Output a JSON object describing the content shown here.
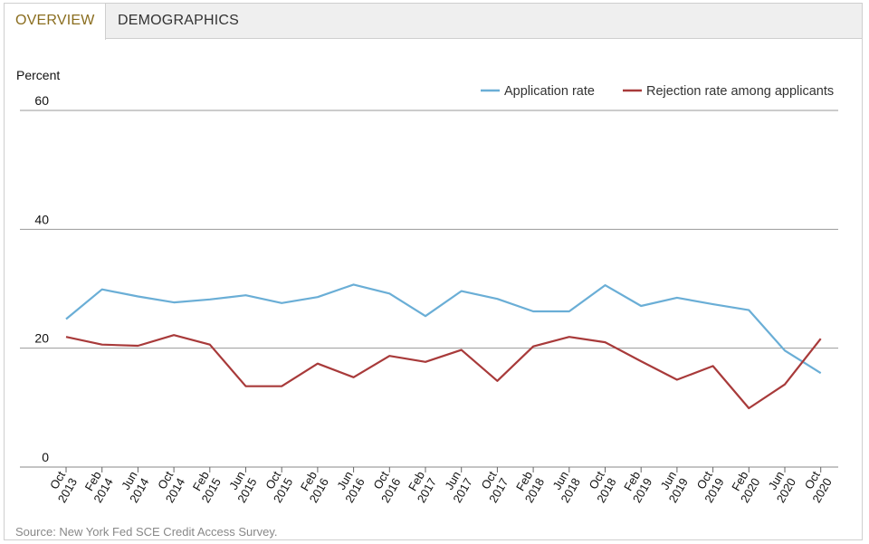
{
  "tabs": [
    {
      "label": "OVERVIEW",
      "active": true
    },
    {
      "label": "DEMOGRAPHICS",
      "active": false
    }
  ],
  "source": "Source: New York Fed SCE Credit Access Survey.",
  "colors": {
    "application": "#6aaed6",
    "rejection": "#a83a3a",
    "active_tab": "#8a6d1e",
    "grid": "#999999"
  },
  "chart_data": {
    "type": "line",
    "ylabel": "Percent",
    "ylim": [
      0,
      60
    ],
    "yticks": [
      0,
      20,
      40,
      60
    ],
    "legend_position": "top-right",
    "categories": [
      [
        "Oct",
        "2013"
      ],
      [
        "Feb",
        "2014"
      ],
      [
        "Jun",
        "2014"
      ],
      [
        "Oct",
        "2014"
      ],
      [
        "Feb",
        "2015"
      ],
      [
        "Jun",
        "2015"
      ],
      [
        "Oct",
        "2015"
      ],
      [
        "Feb",
        "2016"
      ],
      [
        "Jun",
        "2016"
      ],
      [
        "Oct",
        "2016"
      ],
      [
        "Feb",
        "2017"
      ],
      [
        "Jun",
        "2017"
      ],
      [
        "Oct",
        "2017"
      ],
      [
        "Feb",
        "2018"
      ],
      [
        "Jun",
        "2018"
      ],
      [
        "Oct",
        "2018"
      ],
      [
        "Feb",
        "2019"
      ],
      [
        "Jun",
        "2019"
      ],
      [
        "Oct",
        "2019"
      ],
      [
        "Feb",
        "2020"
      ],
      [
        "Jun",
        "2020"
      ],
      [
        "Oct",
        "2020"
      ]
    ],
    "series": [
      {
        "name": "Application rate",
        "color": "#6aaed6",
        "values": [
          24.9,
          29.9,
          28.7,
          27.7,
          28.2,
          28.9,
          27.6,
          28.6,
          30.7,
          29.2,
          25.4,
          29.6,
          28.3,
          26.2,
          26.2,
          30.6,
          27.1,
          28.5,
          27.4,
          26.4,
          19.6,
          15.8
        ]
      },
      {
        "name": "Rejection rate among applicants",
        "color": "#a83a3a",
        "values": [
          21.9,
          20.6,
          20.4,
          22.2,
          20.6,
          13.6,
          13.6,
          17.4,
          15.1,
          18.7,
          17.7,
          19.7,
          14.5,
          20.3,
          21.9,
          21.0,
          17.8,
          14.7,
          17.0,
          9.9,
          13.9,
          21.6
        ]
      }
    ]
  }
}
